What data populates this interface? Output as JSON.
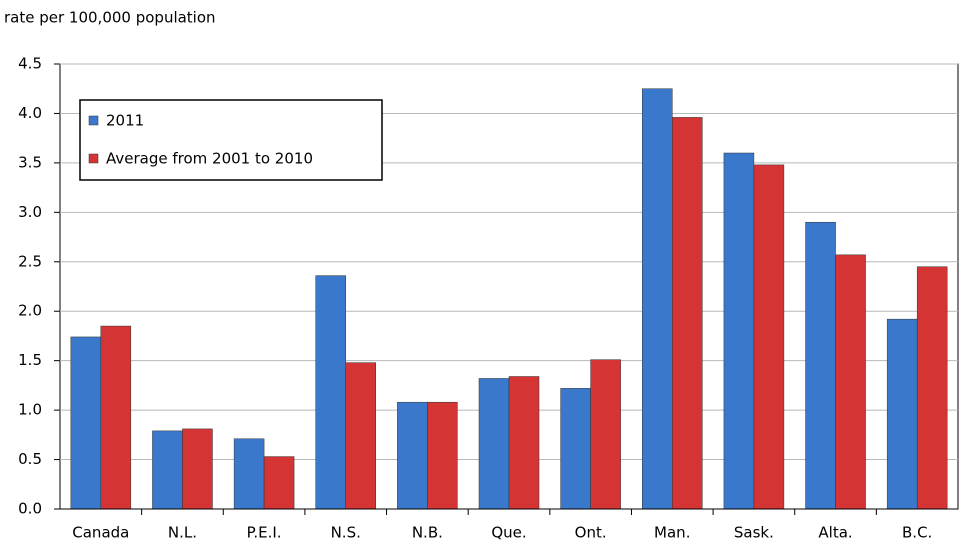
{
  "chart_data": {
    "type": "bar",
    "y_axis_label": "rate per 100,000 population",
    "categories": [
      "Canada",
      "N.L.",
      "P.E.I.",
      "N.S.",
      "N.B.",
      "Que.",
      "Ont.",
      "Man.",
      "Sask.",
      "Alta.",
      "B.C."
    ],
    "series": [
      {
        "name": "2011",
        "color": "#3a78cc",
        "values": [
          1.74,
          0.79,
          0.71,
          2.36,
          1.08,
          1.32,
          1.22,
          4.25,
          3.6,
          2.9,
          1.92
        ]
      },
      {
        "name": "Average from 2001 to 2010",
        "color": "#d43434",
        "values": [
          1.85,
          0.81,
          0.53,
          1.48,
          1.08,
          1.34,
          1.51,
          3.96,
          3.48,
          2.57,
          2.45
        ]
      }
    ],
    "ylim": [
      0,
      4.5
    ],
    "yticks": [
      {
        "value": 0,
        "label": "0.0"
      },
      0.5,
      {
        "value": 1,
        "label": "1.0"
      },
      1.5,
      {
        "value": 2,
        "label": "2.0"
      },
      2.5,
      {
        "value": 3,
        "label": "3.0"
      },
      3.5,
      {
        "value": 4,
        "label": "4.0"
      },
      4.5
    ],
    "grid": true,
    "legend": "top-left"
  }
}
